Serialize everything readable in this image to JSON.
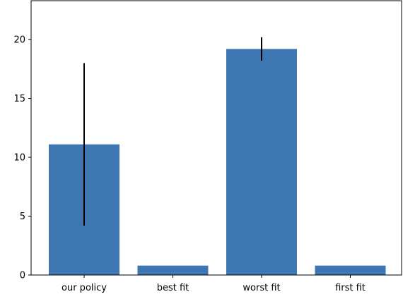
{
  "chart_data": {
    "type": "bar",
    "categories": [
      "our policy",
      "best fit",
      "worst fit",
      "first fit"
    ],
    "values": [
      11.1,
      0.8,
      19.2,
      0.8
    ],
    "errors": [
      {
        "low": 4.2,
        "high": 18.0
      },
      null,
      {
        "low": 18.2,
        "high": 20.2
      },
      null
    ],
    "bar_color": "#3d76b0",
    "error_color": "#000000",
    "ylim": [
      0,
      23.3
    ],
    "yticks": [
      0,
      5,
      10,
      15,
      20
    ],
    "title": "",
    "xlabel": "",
    "ylabel": "",
    "grid": false
  }
}
